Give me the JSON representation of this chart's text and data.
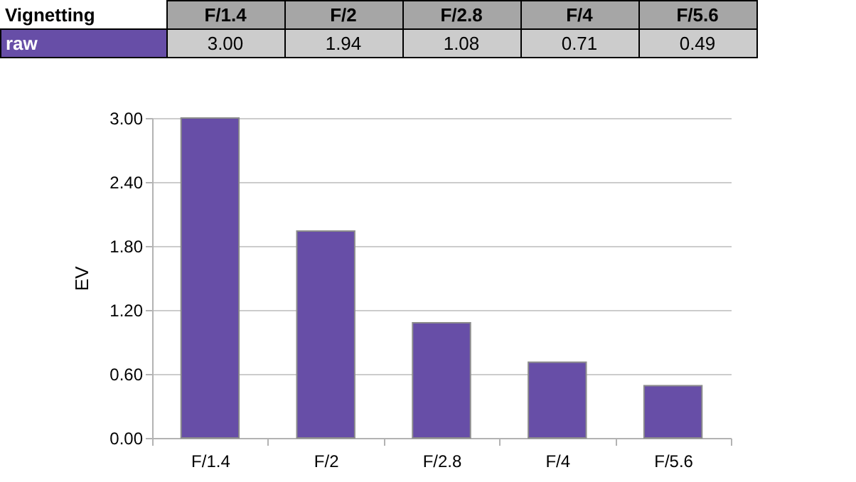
{
  "chart_data": {
    "type": "bar",
    "title": "Vignetting",
    "ylabel": "EV",
    "categories": [
      "F/1.4",
      "F/2",
      "F/2.8",
      "F/4",
      "F/5.6"
    ],
    "series": [
      {
        "name": "raw",
        "color": "#674ea7",
        "values": [
          3.0,
          1.94,
          1.08,
          0.71,
          0.49
        ],
        "value_labels": [
          "3.00",
          "1.94",
          "1.08",
          "0.71",
          "0.49"
        ]
      }
    ],
    "ylim": [
      0,
      3
    ],
    "yticks": [
      {
        "value": 0,
        "label": "0.00"
      },
      {
        "value": 0.6,
        "label": "0.60"
      },
      {
        "value": 1.2,
        "label": "1.20"
      },
      {
        "value": 1.8,
        "label": "1.80"
      },
      {
        "value": 2.4,
        "label": "2.40"
      },
      {
        "value": 3,
        "label": "3.00"
      }
    ],
    "grid": "y",
    "legend": false
  }
}
